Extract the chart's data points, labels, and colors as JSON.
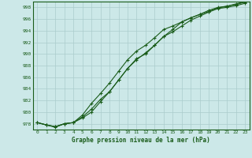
{
  "title": "Graphe pression niveau de la mer (hPa)",
  "background_color": "#cce8e8",
  "grid_color": "#aacccc",
  "line_color": "#1a5c1a",
  "x_labels": [
    "0",
    "1",
    "2",
    "3",
    "4",
    "5",
    "6",
    "7",
    "8",
    "9",
    "10",
    "11",
    "12",
    "13",
    "14",
    "15",
    "16",
    "17",
    "18",
    "19",
    "20",
    "21",
    "22",
    "23"
  ],
  "ylim": [
    977,
    999
  ],
  "yticks": [
    978,
    980,
    982,
    984,
    986,
    988,
    990,
    992,
    994,
    996,
    998
  ],
  "series": [
    [
      978.2,
      977.8,
      977.5,
      978.0,
      978.2,
      979.2,
      980.5,
      982.2,
      983.5,
      985.5,
      987.5,
      989.2,
      990.0,
      991.5,
      993.0,
      993.8,
      994.8,
      995.8,
      996.5,
      997.2,
      997.8,
      998.0,
      998.3,
      998.7
    ],
    [
      978.2,
      977.8,
      977.4,
      978.0,
      978.2,
      979.0,
      980.0,
      981.8,
      983.5,
      985.5,
      987.5,
      989.0,
      990.2,
      991.5,
      993.0,
      994.2,
      995.5,
      996.2,
      996.8,
      997.3,
      997.9,
      998.2,
      998.5,
      998.9
    ],
    [
      978.2,
      977.8,
      977.5,
      978.0,
      978.2,
      979.5,
      981.5,
      983.2,
      985.0,
      987.0,
      989.0,
      990.5,
      991.5,
      992.8,
      994.2,
      994.8,
      995.5,
      996.2,
      996.8,
      997.5,
      998.0,
      998.2,
      998.6,
      999.0
    ]
  ]
}
